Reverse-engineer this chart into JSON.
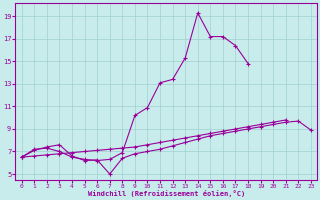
{
  "bg_color": "#c8ecec",
  "line_color": "#990099",
  "grid_color": "#a0d0d0",
  "xlabel": "Windchill (Refroidissement éolien,°C)",
  "xlim": [
    -0.5,
    23.5
  ],
  "ylim": [
    4.5,
    20.2
  ],
  "yticks": [
    5,
    7,
    9,
    11,
    13,
    15,
    17,
    19
  ],
  "xticks": [
    0,
    1,
    2,
    3,
    4,
    5,
    6,
    7,
    8,
    9,
    10,
    11,
    12,
    13,
    14,
    15,
    16,
    17,
    18,
    19,
    20,
    21,
    22,
    23
  ],
  "s1": [
    6.5,
    7.2,
    7.3,
    7.0,
    6.5,
    6.3,
    6.2,
    6.3,
    6.9,
    10.2,
    10.9,
    13.1,
    13.4,
    15.3,
    19.3,
    17.2,
    17.2,
    16.4,
    14.8,
    null,
    null,
    null,
    null,
    null
  ],
  "s2": [
    6.5,
    6.6,
    6.7,
    6.8,
    6.9,
    7.0,
    7.1,
    7.2,
    7.3,
    7.4,
    7.6,
    7.8,
    8.0,
    8.2,
    8.4,
    8.6,
    8.8,
    9.0,
    9.2,
    9.4,
    9.6,
    9.8,
    null,
    null
  ],
  "s3": [
    6.5,
    7.1,
    7.4,
    7.6,
    6.6,
    6.2,
    6.25,
    5.0,
    6.4,
    6.8,
    7.0,
    7.2,
    7.5,
    7.8,
    8.1,
    8.4,
    8.6,
    8.8,
    9.0,
    9.2,
    9.4,
    9.6,
    9.7,
    8.9
  ]
}
